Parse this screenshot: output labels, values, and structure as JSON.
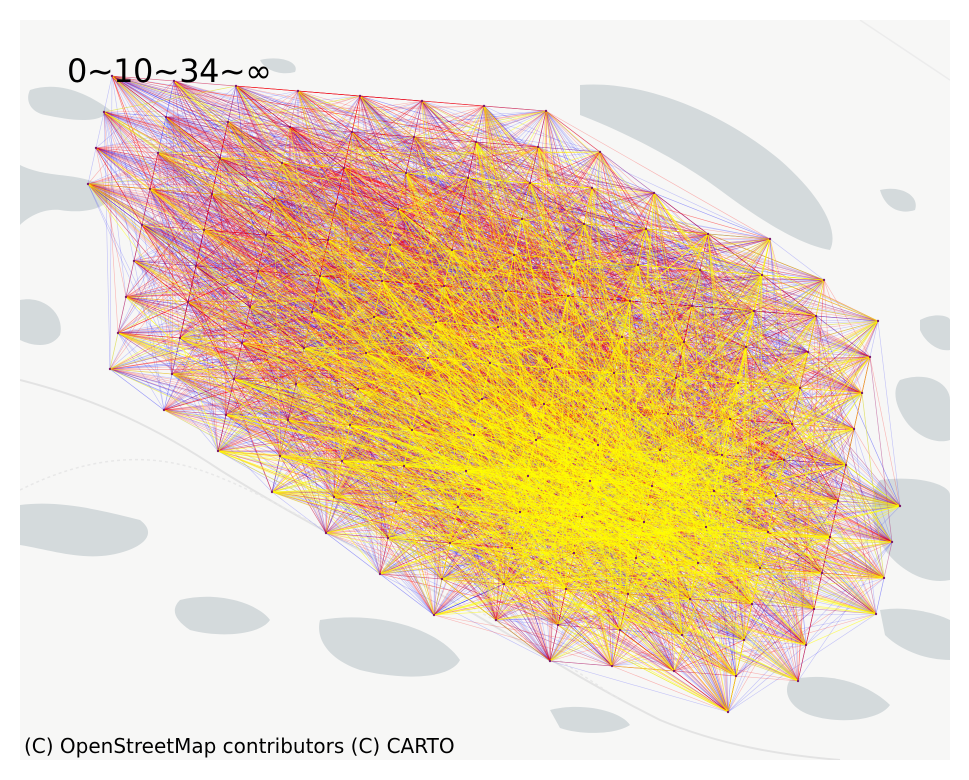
{
  "legend": {
    "text": "0~10~34~∞"
  },
  "attribution": {
    "text": "(C) OpenStreetMap contributors (C) CARTO"
  },
  "colors": {
    "land": "#f7f7f6",
    "water": "#d4dadc",
    "road": "#e6e6e6",
    "low": "#0000ff",
    "mid": "#ff0000",
    "high": "#ffff00"
  }
}
